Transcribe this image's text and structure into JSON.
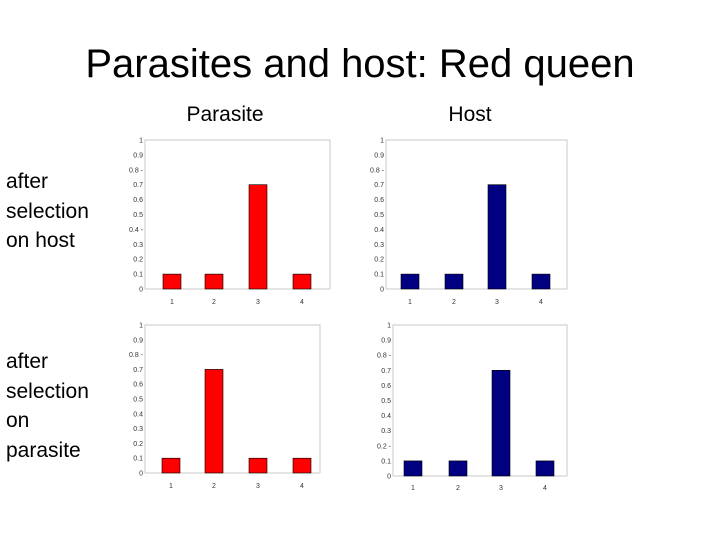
{
  "slide": {
    "title": "Parasites and host:  Red queen",
    "columns": [
      "Parasite",
      "Host"
    ],
    "rows": [
      [
        "after",
        "selection",
        "on host"
      ],
      [
        "after",
        "selection",
        "on",
        "parasite"
      ]
    ]
  },
  "colors": {
    "parasite": "#ff0000",
    "host": "#000080"
  },
  "chart_data": [
    {
      "type": "bar",
      "panel": "Parasite / after selection on host",
      "categories": [
        "1",
        "2",
        "3",
        "4"
      ],
      "values": [
        0.1,
        0.1,
        0.7,
        0.1
      ],
      "ylim": [
        0,
        1
      ],
      "yticks": [
        "0",
        "0.1",
        "0.2",
        "0.3",
        "0.4 -",
        "0.5",
        "0.6",
        "0.7",
        "0.8 -",
        "0.9",
        "1"
      ],
      "color": "#ff0000"
    },
    {
      "type": "bar",
      "panel": "Host / after selection on host",
      "categories": [
        "1",
        "2",
        "3",
        "4"
      ],
      "values": [
        0.1,
        0.1,
        0.7,
        0.1
      ],
      "ylim": [
        0,
        1
      ],
      "yticks": [
        "0",
        "0.1",
        "0.2",
        "0.3",
        "0.4",
        "0.5",
        "0.6",
        "0.7",
        "0.8 -",
        "0.9",
        "1"
      ],
      "color": "#000080"
    },
    {
      "type": "bar",
      "panel": "Parasite / after selection on parasite",
      "categories": [
        "1",
        "2",
        "3",
        "4"
      ],
      "values": [
        0.1,
        0.7,
        0.1,
        0.1
      ],
      "ylim": [
        0,
        1
      ],
      "yticks": [
        "0",
        "0.1",
        "0.2",
        "0.3",
        "0.4",
        "0.5",
        "0.6",
        "0.7",
        "0.8 -",
        "0.9",
        "1"
      ],
      "color": "#ff0000"
    },
    {
      "type": "bar",
      "panel": "Host / after selection on parasite",
      "categories": [
        "1",
        "2",
        "3",
        "4"
      ],
      "values": [
        0.1,
        0.1,
        0.7,
        0.1
      ],
      "ylim": [
        0,
        1
      ],
      "yticks": [
        "0",
        "0.1",
        "0.2 -",
        "0.3",
        "0.4",
        "0.5",
        "0.6",
        "0.7",
        "0.8 -",
        "0.9",
        "1"
      ],
      "color": "#000080"
    }
  ]
}
